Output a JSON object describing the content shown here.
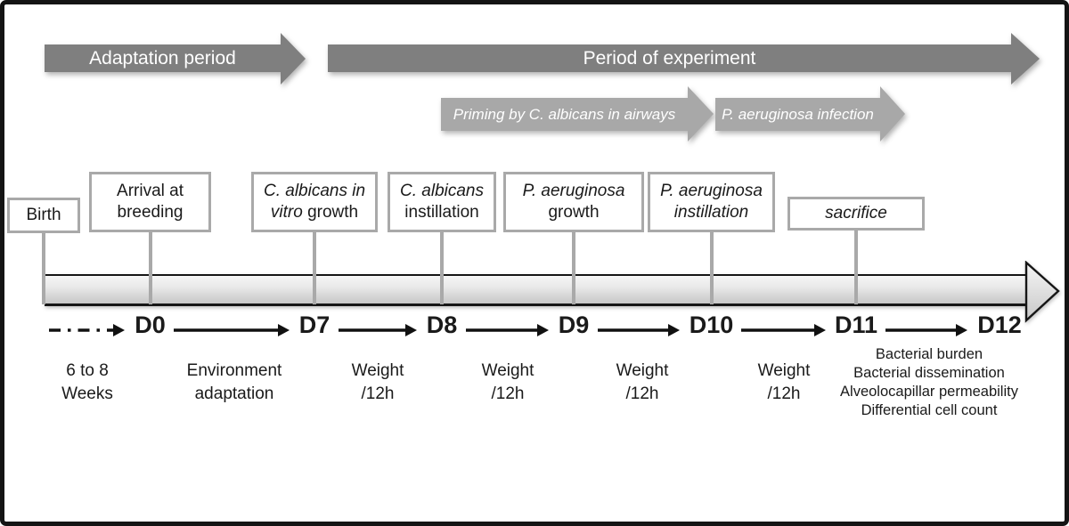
{
  "colors": {
    "dark_arrow": "#7f7f7f",
    "light_arrow": "#a8a8a8",
    "box_border": "#a9a9a9",
    "connector": "#a9a9a9",
    "outline": "#161616",
    "text": "#1a1a1a"
  },
  "phase_arrows": {
    "adaptation": {
      "label": "Adaptation period"
    },
    "experiment": {
      "label": "Period of experiment"
    },
    "priming": {
      "label": "Priming by C. albicans in airways"
    },
    "infection": {
      "label": "P. aeruginosa infection"
    }
  },
  "event_boxes": [
    {
      "id": "birth",
      "lines": [
        [
          {
            "t": "Birth"
          }
        ]
      ]
    },
    {
      "id": "arrival-at-breeding",
      "lines": [
        [
          {
            "t": "Arrival at"
          }
        ],
        [
          {
            "t": "breeding"
          }
        ]
      ]
    },
    {
      "id": "c-albicans-in-vitro-growth",
      "lines": [
        [
          {
            "t": "C. albicans in",
            "i": true
          }
        ],
        [
          {
            "t": "vitro",
            "i": true
          },
          {
            "t": " growth"
          }
        ]
      ]
    },
    {
      "id": "c-albicans-instillation",
      "lines": [
        [
          {
            "t": "C. albicans",
            "i": true
          }
        ],
        [
          {
            "t": "instillation"
          }
        ]
      ]
    },
    {
      "id": "p-aeruginosa-growth",
      "lines": [
        [
          {
            "t": "P. aeruginosa",
            "i": true
          }
        ],
        [
          {
            "t": "growth"
          }
        ]
      ]
    },
    {
      "id": "p-aeruginosa-instillation",
      "lines": [
        [
          {
            "t": "P. aeruginosa",
            "i": true
          }
        ],
        [
          {
            "t": "instillation",
            "i": true
          }
        ]
      ]
    },
    {
      "id": "sacrifice",
      "lines": [
        [
          {
            "t": "sacrifice",
            "i": true
          }
        ]
      ]
    }
  ],
  "timeline": {
    "days": [
      "D0",
      "D7",
      "D8",
      "D9",
      "D10",
      "D11",
      "D12"
    ]
  },
  "annotations": [
    {
      "id": "age",
      "lines": [
        "6 to 8",
        "Weeks"
      ],
      "small": false
    },
    {
      "id": "environment-adaptation",
      "lines": [
        "Environment",
        "adaptation"
      ],
      "small": false
    },
    {
      "id": "weight-1",
      "lines": [
        "Weight",
        "/12h"
      ],
      "small": false
    },
    {
      "id": "weight-2",
      "lines": [
        "Weight",
        "/12h"
      ],
      "small": false
    },
    {
      "id": "weight-3",
      "lines": [
        "Weight",
        "/12h"
      ],
      "small": false
    },
    {
      "id": "weight-4",
      "lines": [
        "Weight",
        "/12h"
      ],
      "small": false
    },
    {
      "id": "d11-readouts",
      "lines": [
        "Bacterial burden",
        "Bacterial dissemination",
        "Alveolocapillar permeability",
        "Differential cell count"
      ],
      "small": true
    }
  ]
}
